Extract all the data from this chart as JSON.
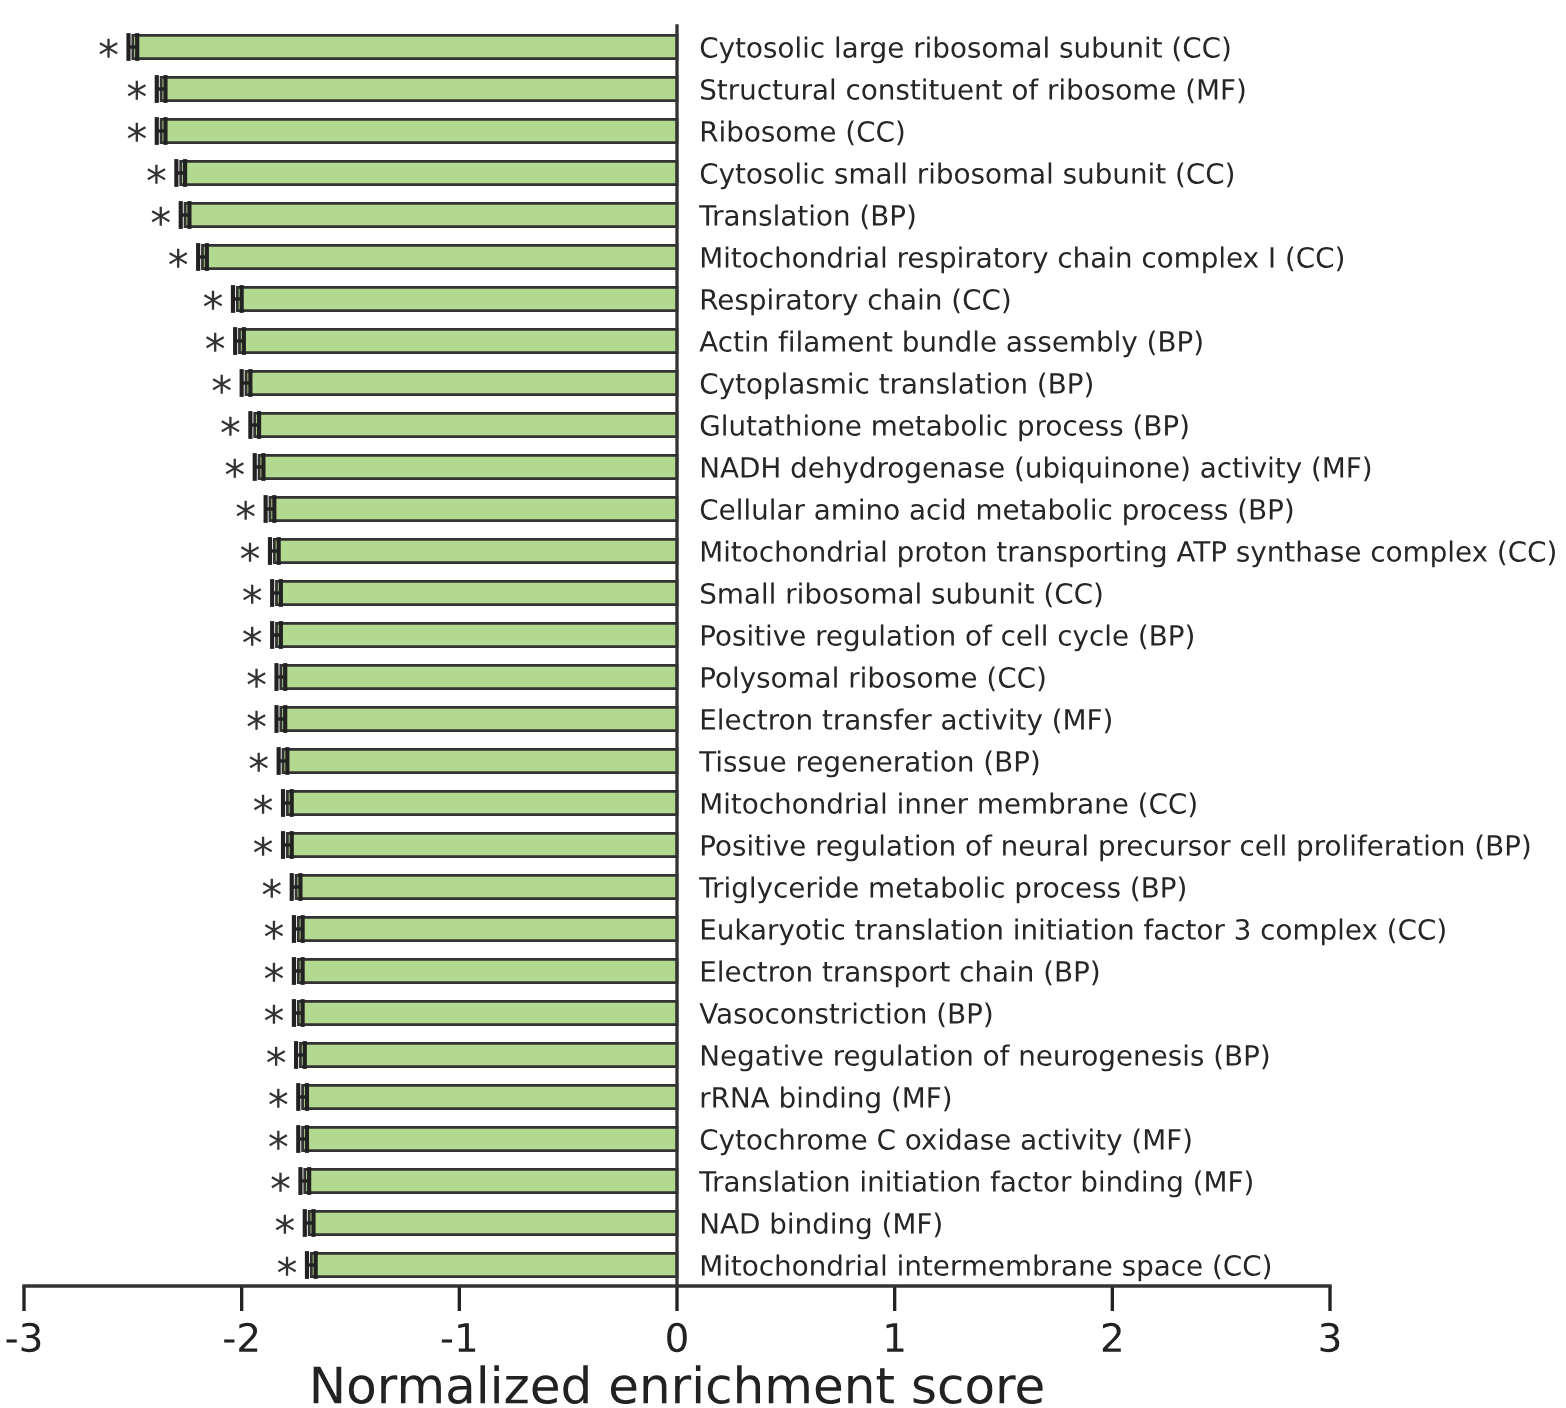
{
  "chart_data": {
    "type": "bar",
    "orientation": "horizontal",
    "xlabel": "Normalized enrichment score",
    "categories": [
      "Cytosolic large ribosomal subunit (CC)",
      "Structural constituent of ribosome (MF)",
      "Ribosome (CC)",
      "Cytosolic small ribosomal subunit (CC)",
      "Translation (BP)",
      "Mitochondrial respiratory chain complex I (CC)",
      "Respiratory chain (CC)",
      "Actin filament bundle assembly (BP)",
      "Cytoplasmic translation (BP)",
      "Glutathione metabolic process (BP)",
      "NADH dehydrogenase (ubiquinone) activity (MF)",
      "Cellular amino acid metabolic process (BP)",
      "Mitochondrial proton transporting ATP synthase complex (CC)",
      "Small ribosomal subunit (CC)",
      "Positive regulation of cell cycle (BP)",
      "Polysomal ribosome (CC)",
      "Electron transfer activity (MF)",
      "Tissue regeneration (BP)",
      "Mitochondrial inner membrane (CC)",
      "Positive regulation of neural precursor cell proliferation (BP)",
      "Triglyceride metabolic process (BP)",
      "Eukaryotic translation initiation factor 3 complex (CC)",
      "Electron transport chain (BP)",
      "Vasoconstriction (BP)",
      "Negative regulation of neurogenesis (BP)",
      "rRNA binding (MF)",
      "Cytochrome C oxidase activity (MF)",
      "Translation initiation factor binding (MF)",
      "NAD binding (MF)",
      "Mitochondrial intermembrane space (CC)"
    ],
    "values": [
      -2.5,
      -2.37,
      -2.37,
      -2.28,
      -2.26,
      -2.18,
      -2.02,
      -2.01,
      -1.98,
      -1.94,
      -1.92,
      -1.87,
      -1.85,
      -1.84,
      -1.84,
      -1.82,
      -1.82,
      -1.81,
      -1.79,
      -1.79,
      -1.75,
      -1.74,
      -1.74,
      -1.74,
      -1.73,
      -1.72,
      -1.72,
      -1.71,
      -1.69,
      -1.68
    ],
    "errors": [
      0.02,
      0.02,
      0.02,
      0.02,
      0.02,
      0.02,
      0.02,
      0.02,
      0.02,
      0.02,
      0.02,
      0.02,
      0.02,
      0.02,
      0.02,
      0.02,
      0.02,
      0.02,
      0.02,
      0.02,
      0.02,
      0.02,
      0.02,
      0.02,
      0.02,
      0.02,
      0.02,
      0.02,
      0.02,
      0.02
    ],
    "color": "#b3d88f",
    "xlim": [
      -3,
      3
    ],
    "xticks": [
      {
        "value": -3,
        "label": "-3"
      },
      {
        "value": -2,
        "label": "-2"
      },
      {
        "value": -1,
        "label": "-1"
      },
      0,
      1,
      2,
      3
    ],
    "grid": false,
    "annotations": [
      {
        "text": "*",
        "x": -2.5,
        "y": "Cytosolic large ribosomal subunit (CC)"
      },
      {
        "text": "*",
        "x": -2.37,
        "y": "Structural constituent of ribosome (MF)"
      },
      {
        "text": "*",
        "x": -2.37,
        "y": "Ribosome (CC)"
      },
      {
        "text": "*",
        "x": -2.28,
        "y": "Cytosolic small ribosomal subunit (CC)"
      },
      {
        "text": "*",
        "x": -2.26,
        "y": "Translation (BP)"
      },
      {
        "text": "*",
        "x": -2.18,
        "y": "Mitochondrial respiratory chain complex I (CC)"
      },
      {
        "text": "*",
        "x": -2.02,
        "y": "Respiratory chain (CC)"
      },
      {
        "text": "*",
        "x": -2.01,
        "y": "Actin filament bundle assembly (BP)"
      },
      {
        "text": "*",
        "x": -1.98,
        "y": "Cytoplasmic translation (BP)"
      },
      {
        "text": "*",
        "x": -1.94,
        "y": "Glutathione metabolic process (BP)"
      },
      {
        "text": "*",
        "x": -1.92,
        "y": "NADH dehydrogenase (ubiquinone) activity (MF)"
      },
      {
        "text": "*",
        "x": -1.87,
        "y": "Cellular amino acid metabolic process (BP)"
      },
      {
        "text": "*",
        "x": -1.85,
        "y": "Mitochondrial proton transporting ATP synthase complex (CC)"
      },
      {
        "text": "*",
        "x": -1.84,
        "y": "Small ribosomal subunit (CC)"
      },
      {
        "text": "*",
        "x": -1.84,
        "y": "Positive regulation of cell cycle (BP)"
      },
      {
        "text": "*",
        "x": -1.82,
        "y": "Polysomal ribosome (CC)"
      },
      {
        "text": "*",
        "x": -1.82,
        "y": "Electron transfer activity (MF)"
      },
      {
        "text": "*",
        "x": -1.81,
        "y": "Tissue regeneration (BP)"
      },
      {
        "text": "*",
        "x": -1.79,
        "y": "Mitochondrial inner membrane (CC)"
      },
      {
        "text": "*",
        "x": -1.79,
        "y": "Positive regulation of neural precursor cell proliferation (BP)"
      },
      {
        "text": "*",
        "x": -1.75,
        "y": "Triglyceride metabolic process (BP)"
      },
      {
        "text": "*",
        "x": -1.74,
        "y": "Eukaryotic translation initiation factor 3 complex (CC)"
      },
      {
        "text": "*",
        "x": -1.74,
        "y": "Electron transport chain (BP)"
      },
      {
        "text": "*",
        "x": -1.74,
        "y": "Vasoconstriction (BP)"
      },
      {
        "text": "*",
        "x": -1.73,
        "y": "Negative regulation of neurogenesis (BP)"
      },
      {
        "text": "*",
        "x": -1.72,
        "y": "rRNA binding (MF)"
      },
      {
        "text": "*",
        "x": -1.72,
        "y": "Cytochrome C oxidase activity (MF)"
      },
      {
        "text": "*",
        "x": -1.71,
        "y": "Translation initiation factor binding (MF)"
      },
      {
        "text": "*",
        "x": -1.69,
        "y": "NAD binding (MF)"
      },
      {
        "text": "*",
        "x": -1.68,
        "y": "Mitochondrial intermembrane space (CC)"
      }
    ]
  }
}
